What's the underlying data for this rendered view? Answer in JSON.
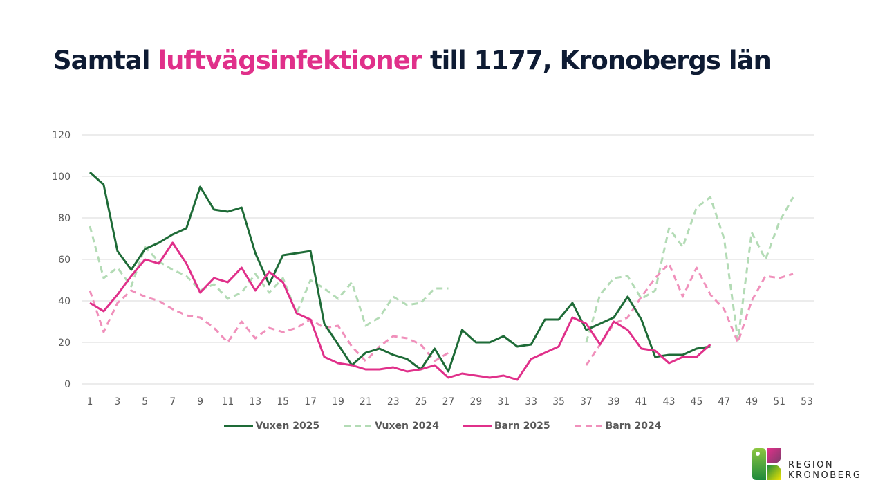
{
  "title": {
    "prefix": "Samtal ",
    "highlight": "luftvägsinfektioner",
    "suffix": " till 1177, Kronobergs län"
  },
  "brand": {
    "line1": "REGION",
    "line2": "KRONOBERG"
  },
  "colors": {
    "title": "#0e1b33",
    "highlight": "#e0308a",
    "vuxen2025": "#1e6b37",
    "vuxen2024": "#b3dbb5",
    "barn2025": "#e0308a",
    "barn2024": "#f090bb",
    "grid": "#d9d9d9"
  },
  "chart_data": {
    "type": "line",
    "title": "Samtal luftvägsinfektioner till 1177, Kronobergs län",
    "xlabel": "",
    "ylabel": "",
    "xlim": [
      1,
      53
    ],
    "ylim": [
      0,
      120
    ],
    "grid": true,
    "legend_position": "bottom",
    "x_ticks": [
      "1",
      "3",
      "5",
      "7",
      "9",
      "11",
      "13",
      "15",
      "17",
      "19",
      "21",
      "23",
      "25",
      "27",
      "29",
      "31",
      "33",
      "35",
      "37",
      "39",
      "41",
      "43",
      "45",
      "47",
      "49",
      "51",
      "53"
    ],
    "y_ticks": [
      "0",
      "20",
      "40",
      "60",
      "80",
      "100",
      "120"
    ],
    "series": [
      {
        "name": "Vuxen 2025",
        "style": "solid",
        "color_key": "vuxen2025",
        "points": [
          [
            1,
            102
          ],
          [
            2,
            96
          ],
          [
            3,
            64
          ],
          [
            4,
            55
          ],
          [
            5,
            65
          ],
          [
            6,
            68
          ],
          [
            7,
            72
          ],
          [
            8,
            75
          ],
          [
            9,
            95
          ],
          [
            10,
            84
          ],
          [
            11,
            83
          ],
          [
            12,
            85
          ],
          [
            13,
            63
          ],
          [
            14,
            48
          ],
          [
            15,
            62
          ],
          [
            16,
            63
          ],
          [
            17,
            64
          ],
          [
            18,
            29
          ],
          [
            19,
            19
          ],
          [
            20,
            9
          ],
          [
            21,
            15
          ],
          [
            22,
            17
          ],
          [
            23,
            14
          ],
          [
            24,
            12
          ],
          [
            25,
            7
          ],
          [
            26,
            17
          ],
          [
            27,
            6
          ],
          [
            28,
            26
          ],
          [
            29,
            20
          ],
          [
            30,
            20
          ],
          [
            31,
            23
          ],
          [
            32,
            18
          ],
          [
            33,
            19
          ],
          [
            34,
            31
          ],
          [
            35,
            31
          ],
          [
            36,
            39
          ],
          [
            37,
            26
          ],
          [
            38,
            29
          ],
          [
            39,
            32
          ],
          [
            40,
            42
          ],
          [
            41,
            31
          ],
          [
            42,
            13
          ],
          [
            43,
            14
          ],
          [
            44,
            14
          ],
          [
            45,
            17
          ],
          [
            46,
            18
          ]
        ]
      },
      {
        "name": "Vuxen 2024",
        "style": "dashed",
        "color_key": "vuxen2024",
        "segments": [
          [
            [
              1,
              76
            ],
            [
              2,
              51
            ],
            [
              3,
              56
            ],
            [
              4,
              47
            ],
            [
              5,
              66
            ],
            [
              6,
              59
            ],
            [
              7,
              55
            ],
            [
              8,
              52
            ],
            [
              9,
              45
            ],
            [
              10,
              48
            ],
            [
              11,
              41
            ],
            [
              12,
              44
            ],
            [
              13,
              53
            ],
            [
              14,
              44
            ],
            [
              15,
              51
            ],
            [
              16,
              34
            ],
            [
              17,
              50
            ],
            [
              18,
              46
            ],
            [
              19,
              41
            ],
            [
              20,
              49
            ],
            [
              21,
              28
            ],
            [
              22,
              32
            ],
            [
              23,
              42
            ],
            [
              24,
              38
            ],
            [
              25,
              39
            ],
            [
              26,
              46
            ],
            [
              27,
              46
            ]
          ],
          [
            [
              37,
              20
            ],
            [
              38,
              43
            ],
            [
              39,
              51
            ],
            [
              40,
              52
            ],
            [
              41,
              41
            ],
            [
              42,
              45
            ],
            [
              43,
              75
            ],
            [
              44,
              66
            ],
            [
              45,
              85
            ],
            [
              46,
              90
            ],
            [
              47,
              70
            ],
            [
              48,
              21
            ],
            [
              49,
              73
            ],
            [
              50,
              60
            ],
            [
              51,
              78
            ],
            [
              52,
              90
            ]
          ]
        ]
      },
      {
        "name": "Barn 2025",
        "style": "solid",
        "color_key": "barn2025",
        "points": [
          [
            1,
            39
          ],
          [
            2,
            35
          ],
          [
            3,
            43
          ],
          [
            4,
            52
          ],
          [
            5,
            60
          ],
          [
            6,
            58
          ],
          [
            7,
            68
          ],
          [
            8,
            58
          ],
          [
            9,
            44
          ],
          [
            10,
            51
          ],
          [
            11,
            49
          ],
          [
            12,
            56
          ],
          [
            13,
            45
          ],
          [
            14,
            54
          ],
          [
            15,
            49
          ],
          [
            16,
            34
          ],
          [
            17,
            31
          ],
          [
            18,
            13
          ],
          [
            19,
            10
          ],
          [
            20,
            9
          ],
          [
            21,
            7
          ],
          [
            22,
            7
          ],
          [
            23,
            8
          ],
          [
            24,
            6
          ],
          [
            25,
            7
          ],
          [
            26,
            9
          ],
          [
            27,
            3
          ],
          [
            28,
            5
          ],
          [
            29,
            4
          ],
          [
            30,
            3
          ],
          [
            31,
            4
          ],
          [
            32,
            2
          ],
          [
            33,
            12
          ],
          [
            34,
            15
          ],
          [
            35,
            18
          ],
          [
            36,
            32
          ],
          [
            37,
            29
          ],
          [
            38,
            19
          ],
          [
            39,
            30
          ],
          [
            40,
            26
          ],
          [
            41,
            17
          ],
          [
            42,
            16
          ],
          [
            43,
            10
          ],
          [
            44,
            13
          ],
          [
            45,
            13
          ],
          [
            46,
            19
          ]
        ]
      },
      {
        "name": "Barn 2024",
        "style": "dashed",
        "color_key": "barn2024",
        "segments": [
          [
            [
              1,
              45
            ],
            [
              2,
              25
            ],
            [
              3,
              39
            ],
            [
              4,
              45
            ],
            [
              5,
              42
            ],
            [
              6,
              40
            ],
            [
              7,
              36
            ],
            [
              8,
              33
            ],
            [
              9,
              32
            ],
            [
              10,
              27
            ],
            [
              11,
              20
            ],
            [
              12,
              30
            ],
            [
              13,
              22
            ],
            [
              14,
              27
            ],
            [
              15,
              25
            ],
            [
              16,
              27
            ],
            [
              17,
              31
            ],
            [
              18,
              27
            ],
            [
              19,
              28
            ],
            [
              20,
              18
            ],
            [
              21,
              11
            ],
            [
              22,
              18
            ],
            [
              23,
              23
            ],
            [
              24,
              22
            ],
            [
              25,
              19
            ],
            [
              26,
              11
            ],
            [
              27,
              15
            ]
          ],
          [
            [
              37,
              9
            ],
            [
              38,
              19
            ],
            [
              39,
              29
            ],
            [
              40,
              32
            ],
            [
              41,
              42
            ],
            [
              42,
              51
            ],
            [
              43,
              58
            ],
            [
              44,
              42
            ],
            [
              45,
              56
            ],
            [
              46,
              43
            ],
            [
              47,
              36
            ],
            [
              48,
              20
            ],
            [
              49,
              40
            ],
            [
              50,
              52
            ],
            [
              51,
              51
            ],
            [
              52,
              53
            ]
          ]
        ]
      }
    ]
  }
}
